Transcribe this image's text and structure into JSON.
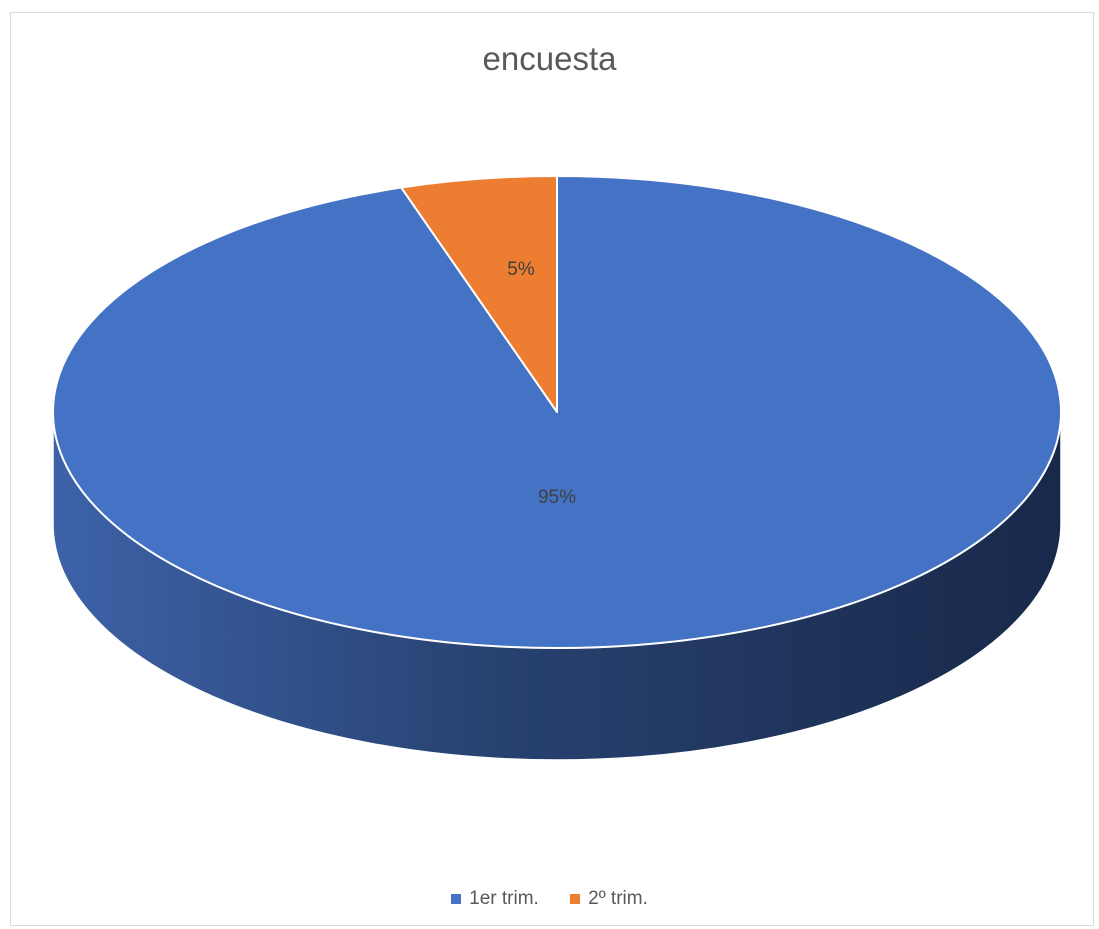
{
  "chart_data": {
    "type": "pie",
    "title": "encuesta",
    "categories": [
      "1er trim.",
      "2º trim."
    ],
    "values": [
      95,
      5
    ],
    "labels": [
      "95%",
      "5%"
    ],
    "colors": [
      "#4472C4",
      "#ED7D31"
    ],
    "side_colors": [
      "#2F528F",
      "#C55A11"
    ],
    "legend_position": "bottom",
    "style": "3d"
  }
}
